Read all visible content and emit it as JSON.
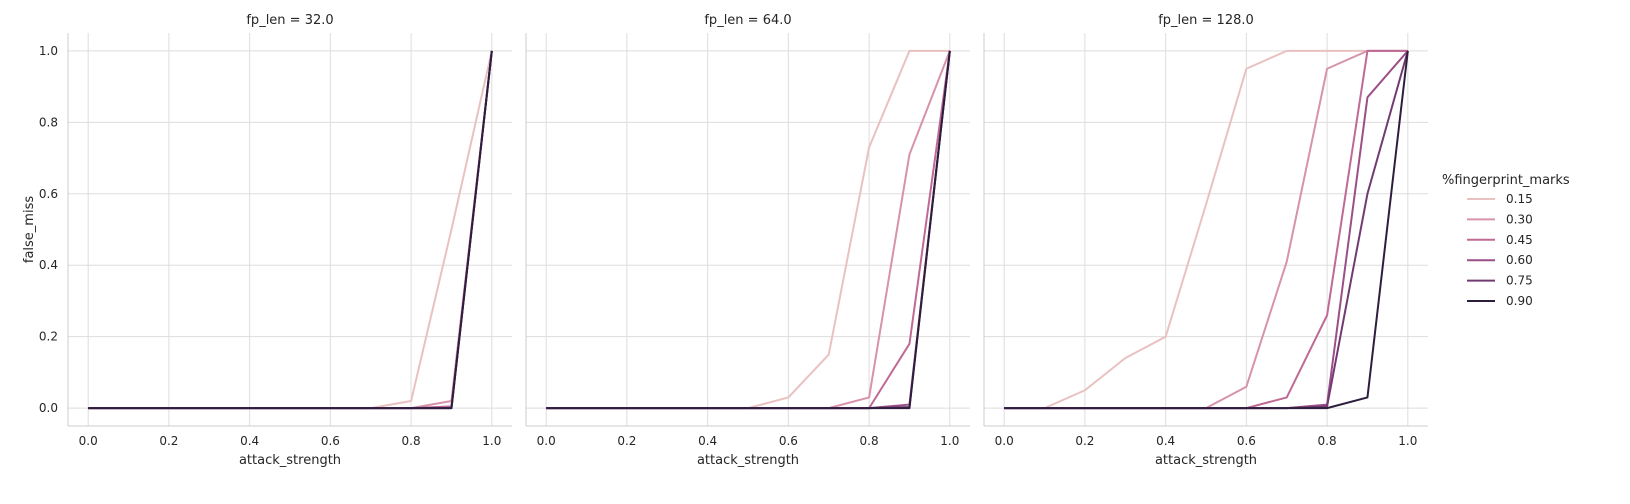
{
  "chart_data": {
    "type": "line",
    "xlabel": "attack_strength",
    "ylabel": "false_miss",
    "xlim": [
      -0.05,
      1.05
    ],
    "ylim": [
      -0.05,
      1.05
    ],
    "xticks": [
      "0.0",
      "0.2",
      "0.4",
      "0.6",
      "0.8",
      "1.0"
    ],
    "yticks": [
      "0.0",
      "0.2",
      "0.4",
      "0.6",
      "0.8",
      "1.0"
    ],
    "grid": true,
    "legend": {
      "title": "%fingerprint_marks",
      "placement": "right",
      "entries": [
        "0.15",
        "0.30",
        "0.45",
        "0.60",
        "0.75",
        "0.90"
      ],
      "colors": [
        "#e9c1c1",
        "#d693a9",
        "#bf6a95",
        "#9b4f86",
        "#723a72",
        "#2d1e3e"
      ]
    },
    "x": [
      0.0,
      0.1,
      0.2,
      0.3,
      0.4,
      0.5,
      0.6,
      0.7,
      0.8,
      0.9,
      1.0
    ],
    "panels": [
      {
        "title": "fp_len = 32.0",
        "series": [
          {
            "name": "0.15",
            "values": [
              0,
              0,
              0,
              0,
              0,
              0,
              0,
              0,
              0.02,
              0.5,
              1.0
            ]
          },
          {
            "name": "0.30",
            "values": [
              0,
              0,
              0,
              0,
              0,
              0,
              0,
              0,
              0,
              0.02,
              1.0
            ]
          },
          {
            "name": "0.45",
            "values": [
              0,
              0,
              0,
              0,
              0,
              0,
              0,
              0,
              0,
              0.005,
              1.0
            ]
          },
          {
            "name": "0.60",
            "values": [
              0,
              0,
              0,
              0,
              0,
              0,
              0,
              0,
              0,
              0,
              1.0
            ]
          },
          {
            "name": "0.75",
            "values": [
              0,
              0,
              0,
              0,
              0,
              0,
              0,
              0,
              0,
              0,
              1.0
            ]
          },
          {
            "name": "0.90",
            "values": [
              0,
              0,
              0,
              0,
              0,
              0,
              0,
              0,
              0,
              0,
              1.0
            ]
          }
        ]
      },
      {
        "title": "fp_len = 64.0",
        "series": [
          {
            "name": "0.15",
            "values": [
              0,
              0,
              0,
              0,
              0,
              0,
              0.03,
              0.15,
              0.73,
              1.0,
              1.0
            ]
          },
          {
            "name": "0.30",
            "values": [
              0,
              0,
              0,
              0,
              0,
              0,
              0,
              0,
              0.03,
              0.71,
              1.0
            ]
          },
          {
            "name": "0.45",
            "values": [
              0,
              0,
              0,
              0,
              0,
              0,
              0,
              0,
              0,
              0.18,
              1.0
            ]
          },
          {
            "name": "0.60",
            "values": [
              0,
              0,
              0,
              0,
              0,
              0,
              0,
              0,
              0,
              0.01,
              1.0
            ]
          },
          {
            "name": "0.75",
            "values": [
              0,
              0,
              0,
              0,
              0,
              0,
              0,
              0,
              0,
              0.003,
              1.0
            ]
          },
          {
            "name": "0.90",
            "values": [
              0,
              0,
              0,
              0,
              0,
              0,
              0,
              0,
              0,
              0,
              1.0
            ]
          }
        ]
      },
      {
        "title": "fp_len = 128.0",
        "series": [
          {
            "name": "0.15",
            "values": [
              0,
              0,
              0.05,
              0.14,
              0.2,
              0.57,
              0.95,
              1.0,
              1.0,
              1.0,
              1.0
            ]
          },
          {
            "name": "0.30",
            "values": [
              0,
              0,
              0,
              0,
              0,
              0,
              0.06,
              0.41,
              0.95,
              1.0,
              1.0
            ]
          },
          {
            "name": "0.45",
            "values": [
              0,
              0,
              0,
              0,
              0,
              0,
              0,
              0.03,
              0.26,
              1.0,
              1.0
            ]
          },
          {
            "name": "0.60",
            "values": [
              0,
              0,
              0,
              0,
              0,
              0,
              0,
              0,
              0.01,
              0.87,
              1.0
            ]
          },
          {
            "name": "0.75",
            "values": [
              0,
              0,
              0,
              0,
              0,
              0,
              0,
              0,
              0.005,
              0.6,
              1.0
            ]
          },
          {
            "name": "0.90",
            "values": [
              0,
              0,
              0,
              0,
              0,
              0,
              0,
              0,
              0,
              0.03,
              1.0
            ]
          }
        ]
      }
    ]
  }
}
